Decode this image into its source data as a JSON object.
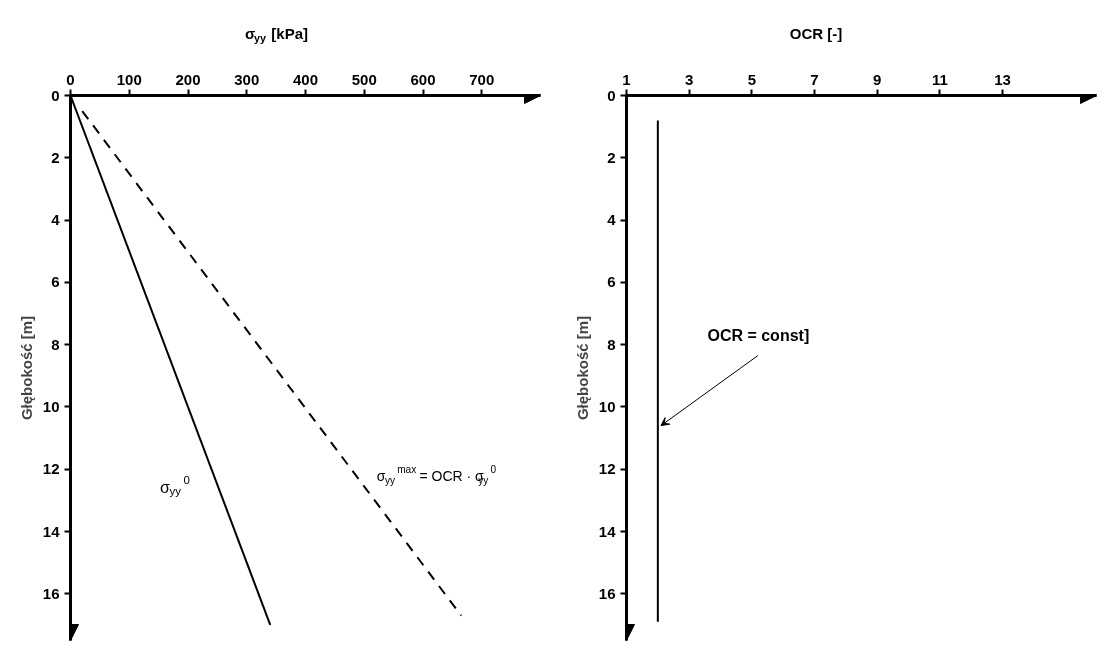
{
  "chart_data": [
    {
      "type": "line",
      "xlabel": "σ$_{yy}$ [kPa]",
      "ylabel": "Głębokość [m]",
      "xlim": [
        0,
        800
      ],
      "ylim": [
        17.5,
        0
      ],
      "xticks": [
        0,
        100,
        200,
        300,
        400,
        500,
        600,
        700
      ],
      "yticks": [
        0,
        2,
        4,
        6,
        8,
        10,
        12,
        14,
        16
      ],
      "grid": false,
      "legend": false,
      "series": [
        {
          "name": "σ$_{yy}$$^{0}$",
          "color": "#000000",
          "line_style": "solid",
          "x": [
            0,
            340
          ],
          "values": [
            0,
            17
          ]
        },
        {
          "name": "σ$_{yy}$$^{max}$ = OCR · σ$_{yy}$$^{0}$",
          "color": "#000000",
          "line_style": "dashed",
          "x": [
            20,
            665
          ],
          "values": [
            0.5,
            16.7
          ]
        }
      ]
    },
    {
      "type": "line",
      "xlabel": "OCR [-]",
      "ylabel": "Głębokość [m]",
      "xlim": [
        1,
        16
      ],
      "ylim": [
        17.5,
        0
      ],
      "xticks": [
        1,
        3,
        5,
        7,
        9,
        11,
        13
      ],
      "yticks": [
        0,
        2,
        4,
        6,
        8,
        10,
        12,
        14,
        16
      ],
      "grid": false,
      "legend": false,
      "series": [
        {
          "color": "#000000",
          "line_style": "solid",
          "x": [
            2,
            2
          ],
          "values": [
            0.8,
            16.9
          ]
        }
      ],
      "annotations": [
        {
          "text": "OCR = const]",
          "x": 2,
          "y": 10.6
        }
      ]
    }
  ]
}
